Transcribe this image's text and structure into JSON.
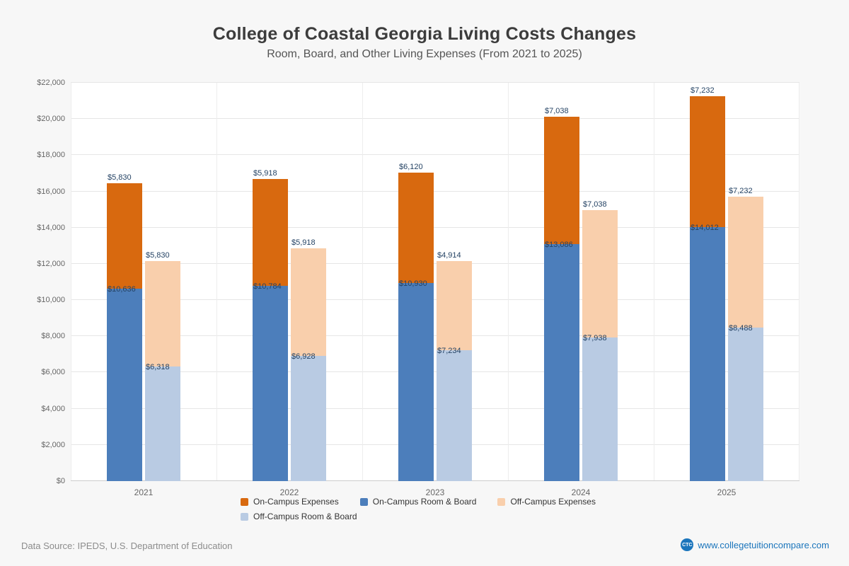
{
  "header": {
    "title": "College of Coastal Georgia Living Costs Changes",
    "subtitle": "Room, Board, and Other Living Expenses (From 2021 to 2025)"
  },
  "chart_data": {
    "type": "bar",
    "variant": "grouped-stacked-column",
    "title": "College of Coastal Georgia Living Costs Changes",
    "subtitle": "Room, Board, and Other Living Expenses (From 2021 to 2025)",
    "categories": [
      "2021",
      "2022",
      "2023",
      "2024",
      "2025"
    ],
    "stack_order": [
      "on-campus",
      "off-campus"
    ],
    "series": [
      {
        "name": "On-Campus Room & Board",
        "stack": "on-campus",
        "color": "#4c7ebb",
        "values": [
          10636,
          10784,
          10930,
          13086,
          14012
        ]
      },
      {
        "name": "On-Campus Expenses",
        "stack": "on-campus",
        "color": "#d8690f",
        "values": [
          5830,
          5918,
          6120,
          7038,
          7232
        ]
      },
      {
        "name": "Off-Campus Room & Board",
        "stack": "off-campus",
        "color": "#b9cbe3",
        "values": [
          6318,
          6928,
          7234,
          7938,
          8488
        ]
      },
      {
        "name": "Off-Campus Expenses",
        "stack": "off-campus",
        "color": "#f9cfac",
        "values": [
          5830,
          5918,
          4914,
          7038,
          7232
        ]
      }
    ],
    "ylim": [
      0,
      22000
    ],
    "ytick_step": 2000,
    "ytick_labels": [
      "$0",
      "$2,000",
      "$4,000",
      "$6,000",
      "$8,000",
      "$10,000",
      "$12,000",
      "$14,000",
      "$16,000",
      "$18,000",
      "$20,000",
      "$22,000"
    ],
    "grid": true,
    "legend_position": "bottom",
    "value_prefix": "$"
  },
  "legend": {
    "items": [
      {
        "label": "On-Campus Expenses",
        "color": "#d8690f"
      },
      {
        "label": "On-Campus Room & Board",
        "color": "#4c7ebb"
      },
      {
        "label": "Off-Campus Expenses",
        "color": "#f9cfac"
      },
      {
        "label": "Off-Campus Room & Board",
        "color": "#b9cbe3"
      }
    ]
  },
  "footer": {
    "source": "Data Source: IPEDS, U.S. Department of Education",
    "logo_text": "CTC",
    "site": "www.collegetuitioncompare.com",
    "link_color": "#1b75bc"
  }
}
